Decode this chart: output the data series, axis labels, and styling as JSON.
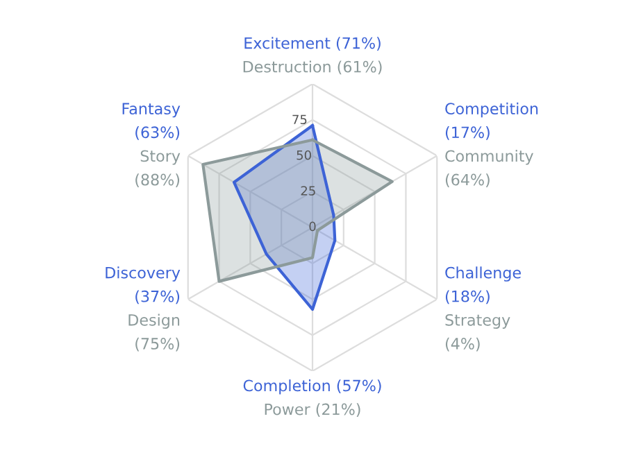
{
  "chart_data": {
    "type": "radar",
    "categories": [
      "Excitement (71%)\nDestruction (61%)",
      "Competition (17%)\nCommunity (64%)",
      "Challenge (18%)\nStrategy (4%)",
      "Completion (57%)\nPower (21%)",
      "Discovery (37%)\nDesign (75%)",
      "Fantasy (63%)\nStory (88%)"
    ],
    "series": [
      {
        "color": "#3d63d6",
        "values": [
          71,
          17,
          18,
          57,
          37,
          63
        ]
      },
      {
        "color": "#8c9a9a",
        "values": [
          61,
          64,
          4,
          21,
          75,
          88
        ]
      }
    ],
    "ylim": [
      0,
      100
    ],
    "yticks": [
      0,
      25,
      50,
      75
    ],
    "grid": true,
    "marker": "none"
  }
}
